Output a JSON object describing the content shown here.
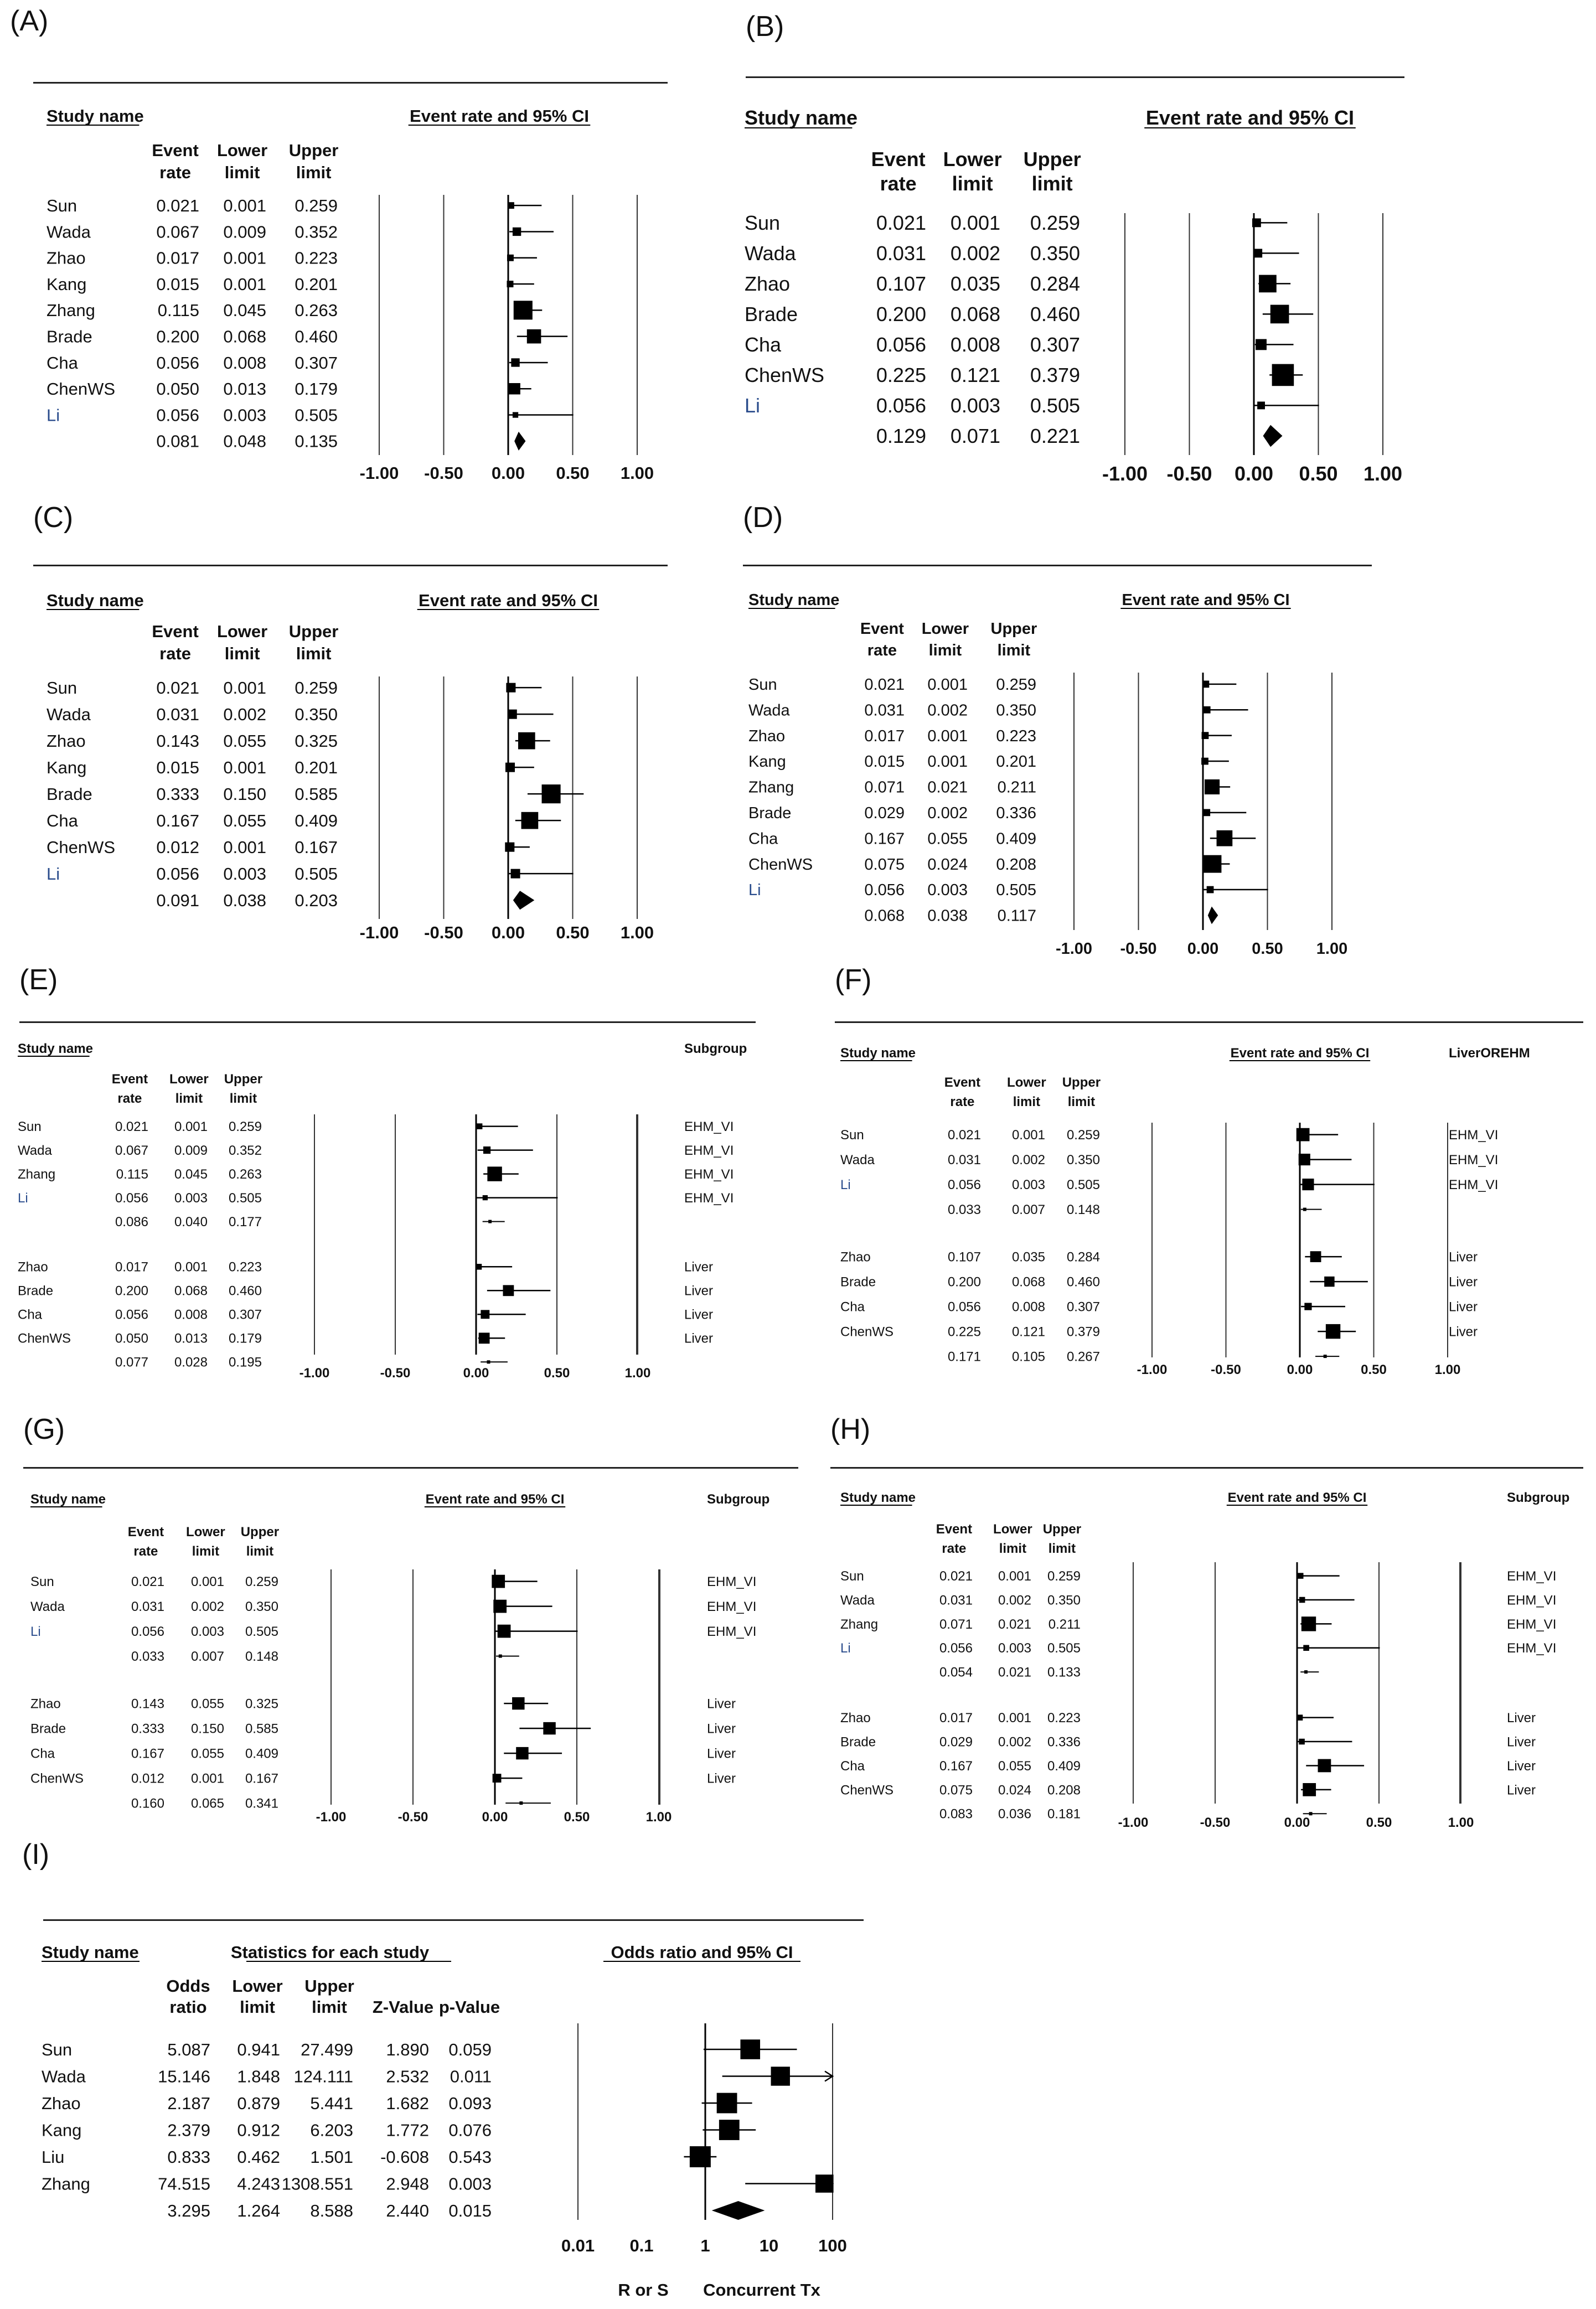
{
  "figure": {
    "panels": [
      "(A)",
      "(B)",
      "(C)",
      "(D)",
      "(E)",
      "(F)",
      "(G)",
      "(H)",
      "(I)"
    ]
  },
  "labels": {
    "study_name": "Study name",
    "event": "Event",
    "rate": "rate",
    "lower": "Lower",
    "upper": "Upper",
    "limit": "limit",
    "odds": "Odds",
    "ratio": "ratio",
    "z_value": "Z-Value",
    "p_value": "p-Value",
    "stats_each": "Statistics for each study",
    "subgroup": "Subgroup"
  },
  "chart_data": [
    {
      "panel": "(A)",
      "type": "forest",
      "title": "Event rate and 95% CI",
      "xlim": [
        -1,
        1
      ],
      "ticks": [
        "-1.00",
        "-0.50",
        "0.00",
        "0.50",
        "1.00"
      ],
      "rows": [
        {
          "study": "Sun",
          "rate": "0.021",
          "lower": "0.001",
          "upper": "0.259",
          "w": 0.35
        },
        {
          "study": "Wada",
          "rate": "0.067",
          "lower": "0.009",
          "upper": "0.352",
          "w": 0.45
        },
        {
          "study": "Zhao",
          "rate": "0.017",
          "lower": "0.001",
          "upper": "0.223",
          "w": 0.35
        },
        {
          "study": "Kang",
          "rate": "0.015",
          "lower": "0.001",
          "upper": "0.201",
          "w": 0.35
        },
        {
          "study": "Zhang",
          "rate": "0.115",
          "lower": "0.045",
          "upper": "0.263",
          "w": 1.0
        },
        {
          "study": "Brade",
          "rate": "0.200",
          "lower": "0.068",
          "upper": "0.460",
          "w": 0.75
        },
        {
          "study": "Cha",
          "rate": "0.056",
          "lower": "0.008",
          "upper": "0.307",
          "w": 0.45
        },
        {
          "study": "ChenWS",
          "rate": "0.050",
          "lower": "0.013",
          "upper": "0.179",
          "w": 0.6
        },
        {
          "study": "Li",
          "rate": "0.056",
          "lower": "0.003",
          "upper": "0.505",
          "w": 0.3
        },
        {
          "study": "",
          "rate": "0.081",
          "lower": "0.048",
          "upper": "0.135",
          "summary": true
        }
      ]
    },
    {
      "panel": "(B)",
      "type": "forest",
      "title": "Event rate and 95% CI",
      "xlim": [
        -1,
        1
      ],
      "ticks": [
        "-1.00",
        "-0.50",
        "0.00",
        "0.50",
        "1.00"
      ],
      "rows": [
        {
          "study": "Sun",
          "rate": "0.021",
          "lower": "0.001",
          "upper": "0.259",
          "w": 0.4
        },
        {
          "study": "Wada",
          "rate": "0.031",
          "lower": "0.002",
          "upper": "0.350",
          "w": 0.4
        },
        {
          "study": "Zhao",
          "rate": "0.107",
          "lower": "0.035",
          "upper": "0.284",
          "w": 0.8
        },
        {
          "study": "Brade",
          "rate": "0.200",
          "lower": "0.068",
          "upper": "0.460",
          "w": 0.85
        },
        {
          "study": "Cha",
          "rate": "0.056",
          "lower": "0.008",
          "upper": "0.307",
          "w": 0.5
        },
        {
          "study": "ChenWS",
          "rate": "0.225",
          "lower": "0.121",
          "upper": "0.379",
          "w": 1.0
        },
        {
          "study": "Li",
          "rate": "0.056",
          "lower": "0.003",
          "upper": "0.505",
          "w": 0.35
        },
        {
          "study": "",
          "rate": "0.129",
          "lower": "0.071",
          "upper": "0.221",
          "summary": true
        }
      ]
    },
    {
      "panel": "(C)",
      "type": "forest",
      "title": "Event rate and 95% CI",
      "xlim": [
        -1,
        1
      ],
      "ticks": [
        "-1.00",
        "-0.50",
        "0.00",
        "0.50",
        "1.00"
      ],
      "rows": [
        {
          "study": "Sun",
          "rate": "0.021",
          "lower": "0.001",
          "upper": "0.259",
          "w": 0.5
        },
        {
          "study": "Wada",
          "rate": "0.031",
          "lower": "0.002",
          "upper": "0.350",
          "w": 0.5
        },
        {
          "study": "Zhao",
          "rate": "0.143",
          "lower": "0.055",
          "upper": "0.325",
          "w": 0.9
        },
        {
          "study": "Kang",
          "rate": "0.015",
          "lower": "0.001",
          "upper": "0.201",
          "w": 0.5
        },
        {
          "study": "Brade",
          "rate": "0.333",
          "lower": "0.150",
          "upper": "0.585",
          "w": 1.0
        },
        {
          "study": "Cha",
          "rate": "0.167",
          "lower": "0.055",
          "upper": "0.409",
          "w": 0.9
        },
        {
          "study": "ChenWS",
          "rate": "0.012",
          "lower": "0.001",
          "upper": "0.167",
          "w": 0.5
        },
        {
          "study": "Li",
          "rate": "0.056",
          "lower": "0.003",
          "upper": "0.505",
          "w": 0.5
        },
        {
          "study": "",
          "rate": "0.091",
          "lower": "0.038",
          "upper": "0.203",
          "summary": true
        }
      ]
    },
    {
      "panel": "(D)",
      "type": "forest",
      "title": "Event rate and 95% CI",
      "xlim": [
        -1,
        1
      ],
      "ticks": [
        "-1.00",
        "-0.50",
        "0.00",
        "0.50",
        "1.00"
      ],
      "rows": [
        {
          "study": "Sun",
          "rate": "0.021",
          "lower": "0.001",
          "upper": "0.259",
          "w": 0.4
        },
        {
          "study": "Wada",
          "rate": "0.031",
          "lower": "0.002",
          "upper": "0.350",
          "w": 0.4
        },
        {
          "study": "Zhao",
          "rate": "0.017",
          "lower": "0.001",
          "upper": "0.223",
          "w": 0.4
        },
        {
          "study": "Kang",
          "rate": "0.015",
          "lower": "0.001",
          "upper": "0.201",
          "w": 0.4
        },
        {
          "study": "Zhang",
          "rate": "0.071",
          "lower": "0.021",
          "upper": "0.211",
          "w": 0.85
        },
        {
          "study": "Brade",
          "rate": "0.029",
          "lower": "0.002",
          "upper": "0.336",
          "w": 0.4
        },
        {
          "study": "Cha",
          "rate": "0.167",
          "lower": "0.055",
          "upper": "0.409",
          "w": 0.9
        },
        {
          "study": "ChenWS",
          "rate": "0.075",
          "lower": "0.024",
          "upper": "0.208",
          "w": 1.0
        },
        {
          "study": "Li",
          "rate": "0.056",
          "lower": "0.003",
          "upper": "0.505",
          "w": 0.4
        },
        {
          "study": "",
          "rate": "0.068",
          "lower": "0.038",
          "upper": "0.117",
          "summary": true
        }
      ]
    },
    {
      "panel": "(E)",
      "type": "forest",
      "title": "",
      "subgroup_header": "Subgroup",
      "xlim": [
        -1,
        1
      ],
      "ticks": [
        "-1.00",
        "-0.50",
        "0.00",
        "0.50",
        "1.00"
      ],
      "rows": [
        {
          "study": "Sun",
          "rate": "0.021",
          "lower": "0.001",
          "upper": "0.259",
          "w": 0.4,
          "sub": "EHM_VI"
        },
        {
          "study": "Wada",
          "rate": "0.067",
          "lower": "0.009",
          "upper": "0.352",
          "w": 0.5,
          "sub": "EHM_VI"
        },
        {
          "study": "Zhang",
          "rate": "0.115",
          "lower": "0.045",
          "upper": "0.263",
          "w": 1.0,
          "sub": "EHM_VI"
        },
        {
          "study": "Li",
          "rate": "0.056",
          "lower": "0.003",
          "upper": "0.505",
          "w": 0.35,
          "sub": "EHM_VI"
        },
        {
          "study": "",
          "rate": "0.086",
          "lower": "0.040",
          "upper": "0.177",
          "pooled": true
        },
        {
          "gap": true
        },
        {
          "study": "Zhao",
          "rate": "0.017",
          "lower": "0.001",
          "upper": "0.223",
          "w": 0.4,
          "sub": "Liver"
        },
        {
          "study": "Brade",
          "rate": "0.200",
          "lower": "0.068",
          "upper": "0.460",
          "w": 0.75,
          "sub": "Liver"
        },
        {
          "study": "Cha",
          "rate": "0.056",
          "lower": "0.008",
          "upper": "0.307",
          "w": 0.6,
          "sub": "Liver"
        },
        {
          "study": "ChenWS",
          "rate": "0.050",
          "lower": "0.013",
          "upper": "0.179",
          "w": 0.75,
          "sub": "Liver"
        },
        {
          "study": "",
          "rate": "0.077",
          "lower": "0.028",
          "upper": "0.195",
          "pooled": true
        }
      ]
    },
    {
      "panel": "(F)",
      "type": "forest",
      "title": "Event rate and 95% CI",
      "subgroup_header": "LiverOREHM",
      "xlim": [
        -1,
        1
      ],
      "ticks": [
        "-1.00",
        "-0.50",
        "0.00",
        "0.50",
        "1.00"
      ],
      "rows": [
        {
          "study": "Sun",
          "rate": "0.021",
          "lower": "0.001",
          "upper": "0.259",
          "w": 0.9,
          "sub": "EHM_VI"
        },
        {
          "study": "Wada",
          "rate": "0.031",
          "lower": "0.002",
          "upper": "0.350",
          "w": 0.8,
          "sub": "EHM_VI"
        },
        {
          "study": "Li",
          "rate": "0.056",
          "lower": "0.003",
          "upper": "0.505",
          "w": 0.8,
          "sub": "EHM_VI"
        },
        {
          "study": "",
          "rate": "0.033",
          "lower": "0.007",
          "upper": "0.148",
          "pooled": true
        },
        {
          "gap": true
        },
        {
          "study": "Zhao",
          "rate": "0.107",
          "lower": "0.035",
          "upper": "0.284",
          "w": 0.75,
          "sub": "Liver"
        },
        {
          "study": "Brade",
          "rate": "0.200",
          "lower": "0.068",
          "upper": "0.460",
          "w": 0.7,
          "sub": "Liver"
        },
        {
          "study": "Cha",
          "rate": "0.056",
          "lower": "0.008",
          "upper": "0.307",
          "w": 0.5,
          "sub": "Liver"
        },
        {
          "study": "ChenWS",
          "rate": "0.225",
          "lower": "0.121",
          "upper": "0.379",
          "w": 1.0,
          "sub": "Liver"
        },
        {
          "study": "",
          "rate": "0.171",
          "lower": "0.105",
          "upper": "0.267",
          "pooled": true
        }
      ]
    },
    {
      "panel": "(G)",
      "type": "forest",
      "title": "Event rate and 95% CI",
      "subgroup_header": "Subgroup",
      "xlim": [
        -1,
        1
      ],
      "ticks": [
        "-1.00",
        "-0.50",
        "0.00",
        "0.50",
        "1.00"
      ],
      "rows": [
        {
          "study": "Sun",
          "rate": "0.021",
          "lower": "0.001",
          "upper": "0.259",
          "w": 0.9,
          "sub": "EHM_VI"
        },
        {
          "study": "Wada",
          "rate": "0.031",
          "lower": "0.002",
          "upper": "0.350",
          "w": 0.9,
          "sub": "EHM_VI"
        },
        {
          "study": "Li",
          "rate": "0.056",
          "lower": "0.003",
          "upper": "0.505",
          "w": 0.9,
          "sub": "EHM_VI"
        },
        {
          "study": "",
          "rate": "0.033",
          "lower": "0.007",
          "upper": "0.148",
          "pooled": true
        },
        {
          "gap": true
        },
        {
          "study": "Zhao",
          "rate": "0.143",
          "lower": "0.055",
          "upper": "0.325",
          "w": 0.85,
          "sub": "Liver"
        },
        {
          "study": "Brade",
          "rate": "0.333",
          "lower": "0.150",
          "upper": "0.585",
          "w": 0.85,
          "sub": "Liver"
        },
        {
          "study": "Cha",
          "rate": "0.167",
          "lower": "0.055",
          "upper": "0.409",
          "w": 0.85,
          "sub": "Liver"
        },
        {
          "study": "ChenWS",
          "rate": "0.012",
          "lower": "0.001",
          "upper": "0.167",
          "w": 0.6,
          "sub": "Liver"
        },
        {
          "study": "",
          "rate": "0.160",
          "lower": "0.065",
          "upper": "0.341",
          "pooled": true
        }
      ]
    },
    {
      "panel": "(H)",
      "type": "forest",
      "title": "Event rate and 95% CI",
      "subgroup_header": "Subgroup",
      "xlim": [
        -1,
        1
      ],
      "ticks": [
        "-1.00",
        "-0.50",
        "0.00",
        "0.50",
        "1.00"
      ],
      "rows": [
        {
          "study": "Sun",
          "rate": "0.021",
          "lower": "0.001",
          "upper": "0.259",
          "w": 0.4,
          "sub": "EHM_VI"
        },
        {
          "study": "Wada",
          "rate": "0.031",
          "lower": "0.002",
          "upper": "0.350",
          "w": 0.4,
          "sub": "EHM_VI"
        },
        {
          "study": "Zhang",
          "rate": "0.071",
          "lower": "0.021",
          "upper": "0.211",
          "w": 1.0,
          "sub": "EHM_VI"
        },
        {
          "study": "Li",
          "rate": "0.056",
          "lower": "0.003",
          "upper": "0.505",
          "w": 0.4,
          "sub": "EHM_VI"
        },
        {
          "study": "",
          "rate": "0.054",
          "lower": "0.021",
          "upper": "0.133",
          "pooled": true
        },
        {
          "gap": true
        },
        {
          "study": "Zhao",
          "rate": "0.017",
          "lower": "0.001",
          "upper": "0.223",
          "w": 0.4,
          "sub": "Liver"
        },
        {
          "study": "Brade",
          "rate": "0.029",
          "lower": "0.002",
          "upper": "0.336",
          "w": 0.4,
          "sub": "Liver"
        },
        {
          "study": "Cha",
          "rate": "0.167",
          "lower": "0.055",
          "upper": "0.409",
          "w": 0.9,
          "sub": "Liver"
        },
        {
          "study": "ChenWS",
          "rate": "0.075",
          "lower": "0.024",
          "upper": "0.208",
          "w": 0.9,
          "sub": "Liver"
        },
        {
          "study": "",
          "rate": "0.083",
          "lower": "0.036",
          "upper": "0.181",
          "pooled": true
        }
      ]
    },
    {
      "panel": "(I)",
      "type": "forest-odds",
      "title": "Odds ratio and 95% CI",
      "scale": "log",
      "xlim": [
        0.01,
        100
      ],
      "ticks": [
        "0.01",
        "0.1",
        "1",
        "10",
        "100"
      ],
      "left_label": "R or S",
      "right_label": "Concurrent Tx",
      "rows": [
        {
          "study": "Sun",
          "or": "5.087",
          "lower": "0.941",
          "upper": "27.499",
          "z": "1.890",
          "p": "0.059",
          "w": 0.8
        },
        {
          "study": "Wada",
          "or": "15.146",
          "lower": "1.848",
          "upper": "124.111",
          "z": "2.532",
          "p": "0.011",
          "w": 0.7,
          "arrow": true
        },
        {
          "study": "Zhao",
          "or": "2.187",
          "lower": "0.879",
          "upper": "5.441",
          "z": "1.682",
          "p": "0.093",
          "w": 0.9
        },
        {
          "study": "Kang",
          "or": "2.379",
          "lower": "0.912",
          "upper": "6.203",
          "z": "1.772",
          "p": "0.076",
          "w": 0.9
        },
        {
          "study": "Liu",
          "or": "0.833",
          "lower": "0.462",
          "upper": "1.501",
          "z": "-0.608",
          "p": "0.543",
          "w": 1.0
        },
        {
          "study": "Zhang",
          "or": "74.515",
          "lower": "4.243",
          "upper": "1308.551",
          "z": "2.948",
          "p": "0.003",
          "w": 0.55,
          "arrow": true
        },
        {
          "study": "",
          "or": "3.295",
          "lower": "1.264",
          "upper": "8.588",
          "z": "2.440",
          "p": "0.015",
          "summary": true
        }
      ]
    }
  ]
}
